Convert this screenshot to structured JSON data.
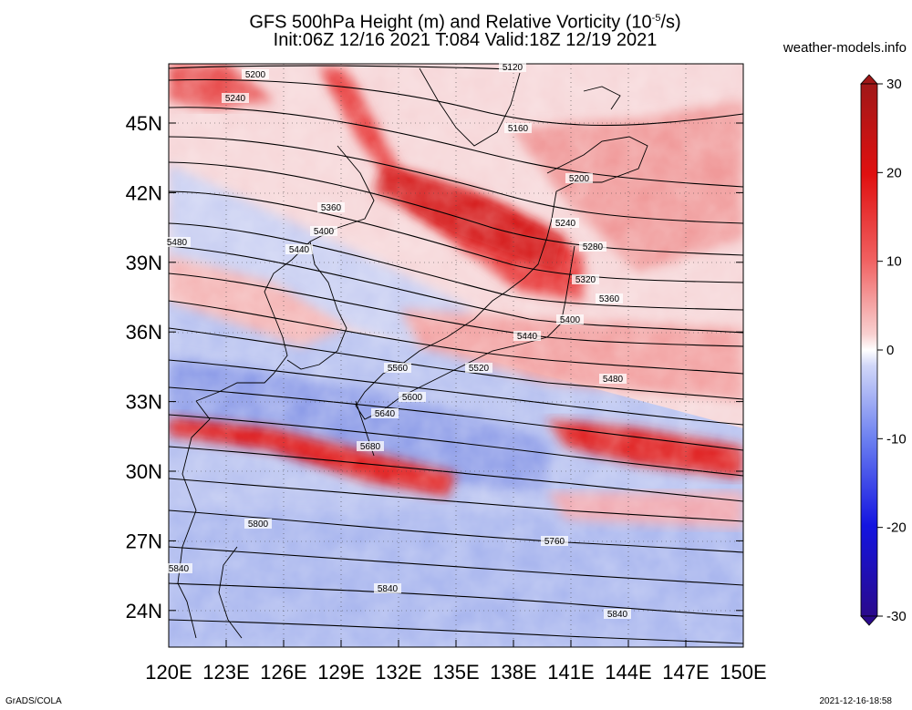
{
  "header": {
    "title_main": "GFS 500hPa Height (m) and Relative Vorticity (10",
    "title_exp": "-5",
    "title_unit": "/s)",
    "title_line2": "Init:06Z 12/16 2021 T:084 Valid:18Z 12/19 2021",
    "site": "weather-models.info"
  },
  "map": {
    "lon_labels": [
      "120E",
      "123E",
      "126E",
      "129E",
      "132E",
      "135E",
      "138E",
      "141E",
      "144E",
      "147E",
      "150E"
    ],
    "lat_labels": [
      "45N",
      "42N",
      "39N",
      "36N",
      "33N",
      "30N",
      "27N",
      "24N"
    ],
    "contour_labels": [
      "5120",
      "5160",
      "5200",
      "5200",
      "5240",
      "5240",
      "5280",
      "5320",
      "5360",
      "5360",
      "5400",
      "5400",
      "5440",
      "5440",
      "5480",
      "5480",
      "5520",
      "5560",
      "5600",
      "5640",
      "5680",
      "5760",
      "5800",
      "5840",
      "5840",
      "5840"
    ]
  },
  "colorbar": {
    "ticks": [
      "30",
      "20",
      "10",
      "0",
      "-10",
      "-20",
      "-30"
    ],
    "colors": [
      "#2a0a8c",
      "#1515e0",
      "#3c5cf0",
      "#8aa0f5",
      "#c8d0f8",
      "#f4f4fa",
      "#f8c8c8",
      "#f08888",
      "#e63a3a",
      "#e01010",
      "#b02020"
    ]
  },
  "footer": {
    "left": "GrADS/COLA",
    "right": "2021-12-16-18:58"
  }
}
